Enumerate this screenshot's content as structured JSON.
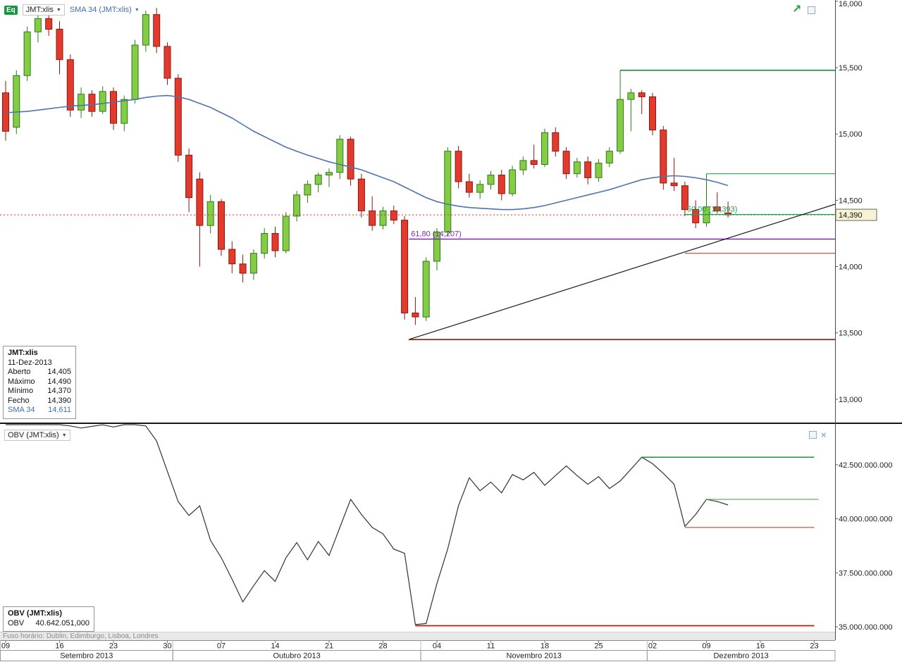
{
  "legend": {
    "eq_badge": "Eq",
    "symbol": "JMT:xlis",
    "sma": "SMA 34 (JMT:xlis)",
    "obv": "OBV (JMT:xlis)"
  },
  "icons": {
    "caret": "▼",
    "close": "×",
    "arrow": "↗"
  },
  "quote_box": {
    "title": "JMT:xlis",
    "date": "11-Dez-2013",
    "rows": [
      {
        "label": "Aberto",
        "value": "14,405"
      },
      {
        "label": "Máximo",
        "value": "14,490"
      },
      {
        "label": "Mínimo",
        "value": "14,370"
      },
      {
        "label": "Fecho",
        "value": "14,390"
      },
      {
        "label": "SMA 34",
        "value": "14,611",
        "color": "#3f6fb0"
      }
    ]
  },
  "obv_box": {
    "title": "OBV (JMT:xlis)",
    "rows": [
      {
        "label": "OBV",
        "value": "40.642.051,000"
      }
    ]
  },
  "footer": {
    "timezone": "Fuso horário: Dublin, Edimburgo, Lisboa, Londres"
  },
  "axes": {
    "price_ticks": [
      {
        "value": 16000,
        "label": "16,000"
      },
      {
        "value": 15500,
        "label": "15,500"
      },
      {
        "value": 15000,
        "label": "15,000"
      },
      {
        "value": 14500,
        "label": "14,500"
      },
      {
        "value": 14000,
        "label": "14,000"
      },
      {
        "value": 13500,
        "label": "13,500"
      },
      {
        "value": 13000,
        "label": "13,000"
      }
    ],
    "obv_ticks": [
      {
        "value": 42.5,
        "label": "42.500.000.000"
      },
      {
        "value": 40.0,
        "label": "40.000.000.000"
      },
      {
        "value": 37.5,
        "label": "37.500.000.000"
      },
      {
        "value": 35.0,
        "label": "35.000.000.000"
      }
    ],
    "week_ticks": [
      {
        "label": "09",
        "index": 0
      },
      {
        "label": "16",
        "index": 5
      },
      {
        "label": "23",
        "index": 10
      },
      {
        "label": "30",
        "index": 15
      },
      {
        "label": "07",
        "index": 20
      },
      {
        "label": "14",
        "index": 25
      },
      {
        "label": "21",
        "index": 30
      },
      {
        "label": "28",
        "index": 35
      },
      {
        "label": "04",
        "index": 40
      },
      {
        "label": "11",
        "index": 45
      },
      {
        "label": "18",
        "index": 50
      },
      {
        "label": "25",
        "index": 55
      },
      {
        "label": "02",
        "index": 60
      },
      {
        "label": "09",
        "index": 65
      },
      {
        "label": "16",
        "index": 70
      },
      {
        "label": "23",
        "index": 75
      }
    ],
    "months": [
      {
        "label": "Setembro 2013",
        "from_index": -0.5,
        "to_index": 15.5
      },
      {
        "label": "Outubro 2013",
        "from_index": 15.5,
        "to_index": 38.5
      },
      {
        "label": "Novembro 2013",
        "from_index": 38.5,
        "to_index": 59.5
      },
      {
        "label": "Dezembro 2013",
        "from_index": 59.5,
        "to_index": 77.5
      }
    ]
  },
  "colors": {
    "up_fill": "#85cc45",
    "up_border": "#2e7a1c",
    "down_fill": "#e23b2e",
    "down_border": "#8f150c",
    "sma": "#4f74ad",
    "obv": "#333333",
    "green_line": "#18923f",
    "red_line": "#c42a1c",
    "purple_line": "#7a2bb5"
  },
  "chart_data": {
    "type": "candlestick",
    "symbol": "JMT:xlis",
    "overlay": "SMA 34",
    "lower_indicator": "OBV",
    "year": 2013,
    "ylim_price": [
      12824,
      16010
    ],
    "ylim_obv_billions": [
      34.8,
      44.5
    ],
    "dates": [
      "09-09",
      "09-10",
      "09-11",
      "09-12",
      "09-13",
      "09-16",
      "09-17",
      "09-18",
      "09-19",
      "09-20",
      "09-23",
      "09-24",
      "09-25",
      "09-26",
      "09-27",
      "09-30",
      "10-01",
      "10-02",
      "10-03",
      "10-04",
      "10-07",
      "10-08",
      "10-09",
      "10-10",
      "10-11",
      "10-14",
      "10-15",
      "10-16",
      "10-17",
      "10-18",
      "10-21",
      "10-22",
      "10-23",
      "10-24",
      "10-25",
      "10-28",
      "10-29",
      "10-30",
      "10-31",
      "11-01",
      "11-04",
      "11-05",
      "11-06",
      "11-07",
      "11-08",
      "11-11",
      "11-12",
      "11-13",
      "11-14",
      "11-15",
      "11-18",
      "11-19",
      "11-20",
      "11-21",
      "11-22",
      "11-25",
      "11-26",
      "11-27",
      "11-28",
      "11-29",
      "12-02",
      "12-03",
      "12-04",
      "12-05",
      "12-06",
      "12-09",
      "12-10",
      "12-11"
    ],
    "candles": [
      [
        15310,
        15400,
        14950,
        15020
      ],
      [
        15050,
        15480,
        15000,
        15440
      ],
      [
        15440,
        15810,
        15400,
        15770
      ],
      [
        15770,
        15900,
        15690,
        15870
      ],
      [
        15870,
        15930,
        15740,
        15790
      ],
      [
        15790,
        15850,
        15450,
        15560
      ],
      [
        15560,
        15600,
        15130,
        15180
      ],
      [
        15180,
        15350,
        15120,
        15300
      ],
      [
        15300,
        15330,
        15130,
        15170
      ],
      [
        15170,
        15360,
        15150,
        15320
      ],
      [
        15320,
        15350,
        15030,
        15080
      ],
      [
        15080,
        15290,
        15020,
        15260
      ],
      [
        15260,
        15710,
        15230,
        15670
      ],
      [
        15670,
        15930,
        15620,
        15900
      ],
      [
        15900,
        15950,
        15610,
        15660
      ],
      [
        15660,
        15690,
        15370,
        15420
      ],
      [
        15420,
        15450,
        14790,
        14840
      ],
      [
        14840,
        14890,
        14410,
        14520
      ],
      [
        14660,
        14710,
        14000,
        14310
      ],
      [
        14310,
        14540,
        14250,
        14490
      ],
      [
        14490,
        14510,
        14080,
        14130
      ],
      [
        14130,
        14190,
        13950,
        14020
      ],
      [
        14020,
        14090,
        13880,
        13950
      ],
      [
        13950,
        14130,
        13900,
        14100
      ],
      [
        14100,
        14290,
        14060,
        14250
      ],
      [
        14250,
        14300,
        14070,
        14120
      ],
      [
        14120,
        14410,
        14100,
        14380
      ],
      [
        14380,
        14570,
        14340,
        14540
      ],
      [
        14540,
        14650,
        14480,
        14620
      ],
      [
        14620,
        14710,
        14560,
        14690
      ],
      [
        14690,
        14740,
        14600,
        14710
      ],
      [
        14710,
        14990,
        14660,
        14960
      ],
      [
        14960,
        14980,
        14610,
        14660
      ],
      [
        14660,
        14700,
        14370,
        14420
      ],
      [
        14420,
        14530,
        14270,
        14310
      ],
      [
        14310,
        14450,
        14280,
        14420
      ],
      [
        14420,
        14460,
        14320,
        14350
      ],
      [
        14350,
        14380,
        13600,
        13650
      ],
      [
        13650,
        13770,
        13560,
        13620
      ],
      [
        13620,
        14070,
        13590,
        14040
      ],
      [
        14040,
        14290,
        13970,
        14260
      ],
      [
        14260,
        14900,
        14230,
        14870
      ],
      [
        14870,
        14910,
        14590,
        14640
      ],
      [
        14640,
        14700,
        14520,
        14560
      ],
      [
        14560,
        14650,
        14510,
        14620
      ],
      [
        14620,
        14720,
        14580,
        14690
      ],
      [
        14690,
        14730,
        14500,
        14550
      ],
      [
        14550,
        14760,
        14530,
        14730
      ],
      [
        14730,
        14830,
        14690,
        14800
      ],
      [
        14800,
        14920,
        14740,
        14770
      ],
      [
        14770,
        15040,
        14750,
        15010
      ],
      [
        15010,
        15050,
        14830,
        14870
      ],
      [
        14870,
        14900,
        14660,
        14700
      ],
      [
        14700,
        14820,
        14670,
        14790
      ],
      [
        14790,
        14830,
        14620,
        14670
      ],
      [
        14670,
        14810,
        14640,
        14780
      ],
      [
        14780,
        14900,
        14750,
        14870
      ],
      [
        14870,
        15480,
        14850,
        15260
      ],
      [
        15260,
        15340,
        15020,
        15310
      ],
      [
        15310,
        15330,
        15150,
        15280
      ],
      [
        15280,
        15310,
        14990,
        15030
      ],
      [
        15030,
        15060,
        14580,
        14630
      ],
      [
        14630,
        14820,
        14570,
        14610
      ],
      [
        14610,
        14640,
        14380,
        14430
      ],
      [
        14430,
        14500,
        14290,
        14330
      ],
      [
        14330,
        14700,
        14300,
        14450
      ],
      [
        14450,
        14560,
        14400,
        14420
      ],
      [
        14405,
        14490,
        14370,
        14390
      ]
    ],
    "sma34": [
      15160,
      15165,
      15170,
      15180,
      15190,
      15200,
      15210,
      15215,
      15220,
      15230,
      15240,
      15250,
      15260,
      15275,
      15285,
      15290,
      15280,
      15260,
      15230,
      15200,
      15160,
      15120,
      15070,
      15020,
      14980,
      14940,
      14900,
      14870,
      14840,
      14815,
      14790,
      14770,
      14750,
      14730,
      14700,
      14670,
      14640,
      14600,
      14560,
      14520,
      14490,
      14470,
      14455,
      14445,
      14440,
      14435,
      14430,
      14430,
      14435,
      14445,
      14460,
      14480,
      14500,
      14520,
      14540,
      14560,
      14580,
      14605,
      14630,
      14655,
      14670,
      14680,
      14685,
      14680,
      14670,
      14655,
      14635,
      14611
    ],
    "obv_billions": [
      44.4,
      44.45,
      44.5,
      44.42,
      44.47,
      44.4,
      44.3,
      44.2,
      44.28,
      44.35,
      44.25,
      44.4,
      44.45,
      44.3,
      43.6,
      42.2,
      40.8,
      40.15,
      40.6,
      39.0,
      38.2,
      37.2,
      36.15,
      36.9,
      37.6,
      37.1,
      38.2,
      38.9,
      38.1,
      38.95,
      38.3,
      39.6,
      40.9,
      40.2,
      39.6,
      39.3,
      38.6,
      38.4,
      35.1,
      35.15,
      37.0,
      38.6,
      40.6,
      41.9,
      41.3,
      41.7,
      41.2,
      42.05,
      41.8,
      42.15,
      41.55,
      42.0,
      42.45,
      42.0,
      41.6,
      41.95,
      41.4,
      41.75,
      42.3,
      42.85,
      42.55,
      42.1,
      41.6,
      39.65,
      40.2,
      40.9,
      40.8,
      40.642
    ],
    "current_price": {
      "value": 14390,
      "display": "14,390",
      "color": "#cc3333"
    },
    "price_lines": [
      {
        "value": 15480,
        "from_index": 57,
        "color": "#18923f",
        "width": 1.6
      },
      {
        "value": 14700,
        "from_index": 65,
        "color": "#2da35a",
        "width": 1.2
      },
      {
        "value": 14393,
        "from_index": 63,
        "color": "#21a254",
        "width": 1.4,
        "label": "50,00 (14,393)"
      },
      {
        "value": 14207,
        "from_index": 37.4,
        "color": "#7a2bb5",
        "width": 1.5,
        "label": "61,80 (14,207)"
      },
      {
        "value": 14100,
        "from_index": 63,
        "color": "#d23b2e",
        "width": 1.2
      },
      {
        "value": 13450,
        "from_index": 37.4,
        "color": "#b2200f",
        "width": 1.8
      }
    ],
    "trend_line": {
      "from_index": 37.4,
      "from_value": 13450,
      "to_value": 14470,
      "color": "#1a1a1a",
      "width": 1.2
    },
    "obv_lines": [
      {
        "value": 42.85,
        "from_index": 59,
        "to_index": 75,
        "color": "#18923f",
        "width": 1.6
      },
      {
        "value": 40.9,
        "from_index": 65,
        "to_index": 75.4,
        "color": "#45ab5e",
        "width": 1.2
      },
      {
        "value": 39.6,
        "from_index": 63,
        "to_index": 75,
        "color": "#d23b2e",
        "width": 1.2
      },
      {
        "value": 35.05,
        "from_index": 38,
        "to_index": 75,
        "color": "#b2200f",
        "width": 1.8
      }
    ]
  }
}
